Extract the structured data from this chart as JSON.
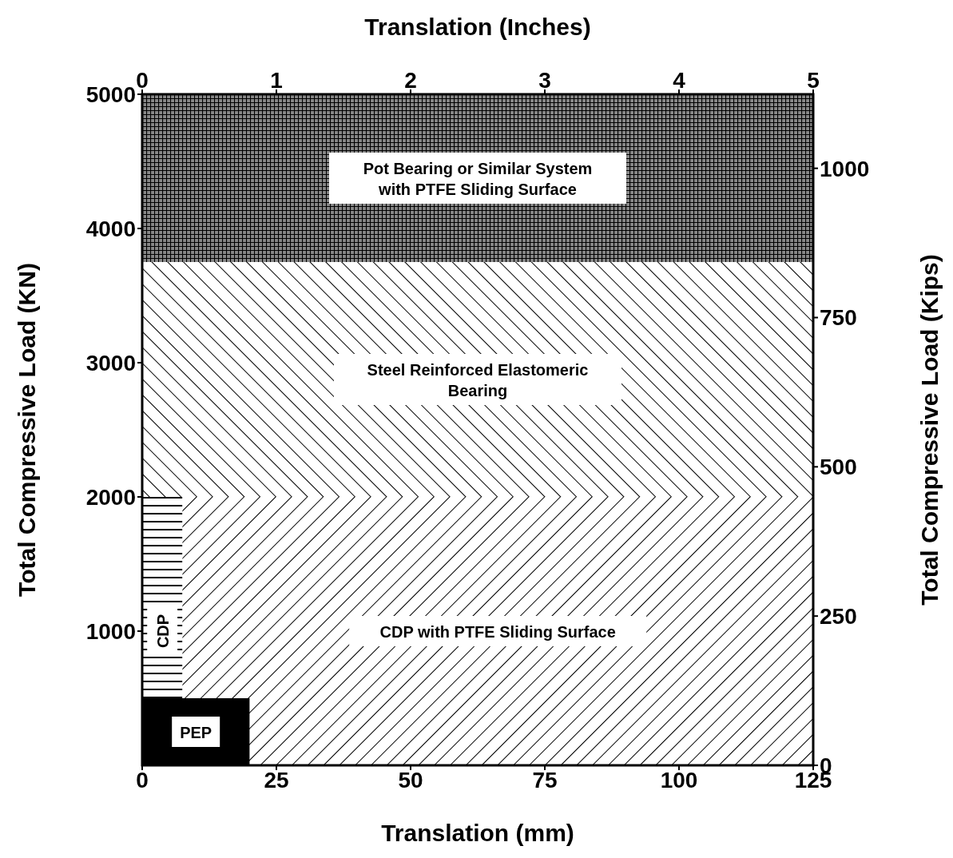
{
  "chart_data": {
    "type": "area",
    "xlabel": "Translation (mm)",
    "ylabel": "Total Compressive Load (KN)",
    "x2label": "Translation (Inches)",
    "y2label": "Total Compressive Load (Kips)",
    "xlim": [
      0,
      125
    ],
    "xticks": [
      0,
      25,
      50,
      75,
      100,
      125
    ],
    "ylim": [
      0,
      5000
    ],
    "yticks": [
      1000,
      2000,
      3000,
      4000,
      5000
    ],
    "x2lim": [
      0,
      5
    ],
    "x2ticks": [
      0,
      1,
      2,
      3,
      4,
      5
    ],
    "y2lim": [
      0,
      1124
    ],
    "y2ticks": [
      0,
      250,
      500,
      750,
      1000
    ],
    "series": [
      {
        "name": "CDP",
        "color": "#000000",
        "x": [
          0,
          7.5
        ],
        "values": [
          2000,
          2000
        ]
      },
      {
        "name": "CDP with PTFE Sliding Surface",
        "color": "#000000",
        "x": [
          7.5,
          125
        ],
        "values": [
          2000,
          2000
        ]
      },
      {
        "name": "PEP",
        "color": "#000000",
        "x": [
          0,
          20
        ],
        "values": [
          500,
          500
        ]
      }
    ],
    "bands": [
      {
        "axis": "y",
        "from": 2000,
        "to": 3750,
        "label": "Steel Reinforced Elastomeric Bearing",
        "color": "#000000"
      },
      {
        "axis": "y",
        "from": 3750,
        "to": 5000,
        "label": "Pot Bearing or Similar System with PTFE Sliding Surface",
        "color": "#000000"
      }
    ],
    "grid": false,
    "legend": false
  }
}
